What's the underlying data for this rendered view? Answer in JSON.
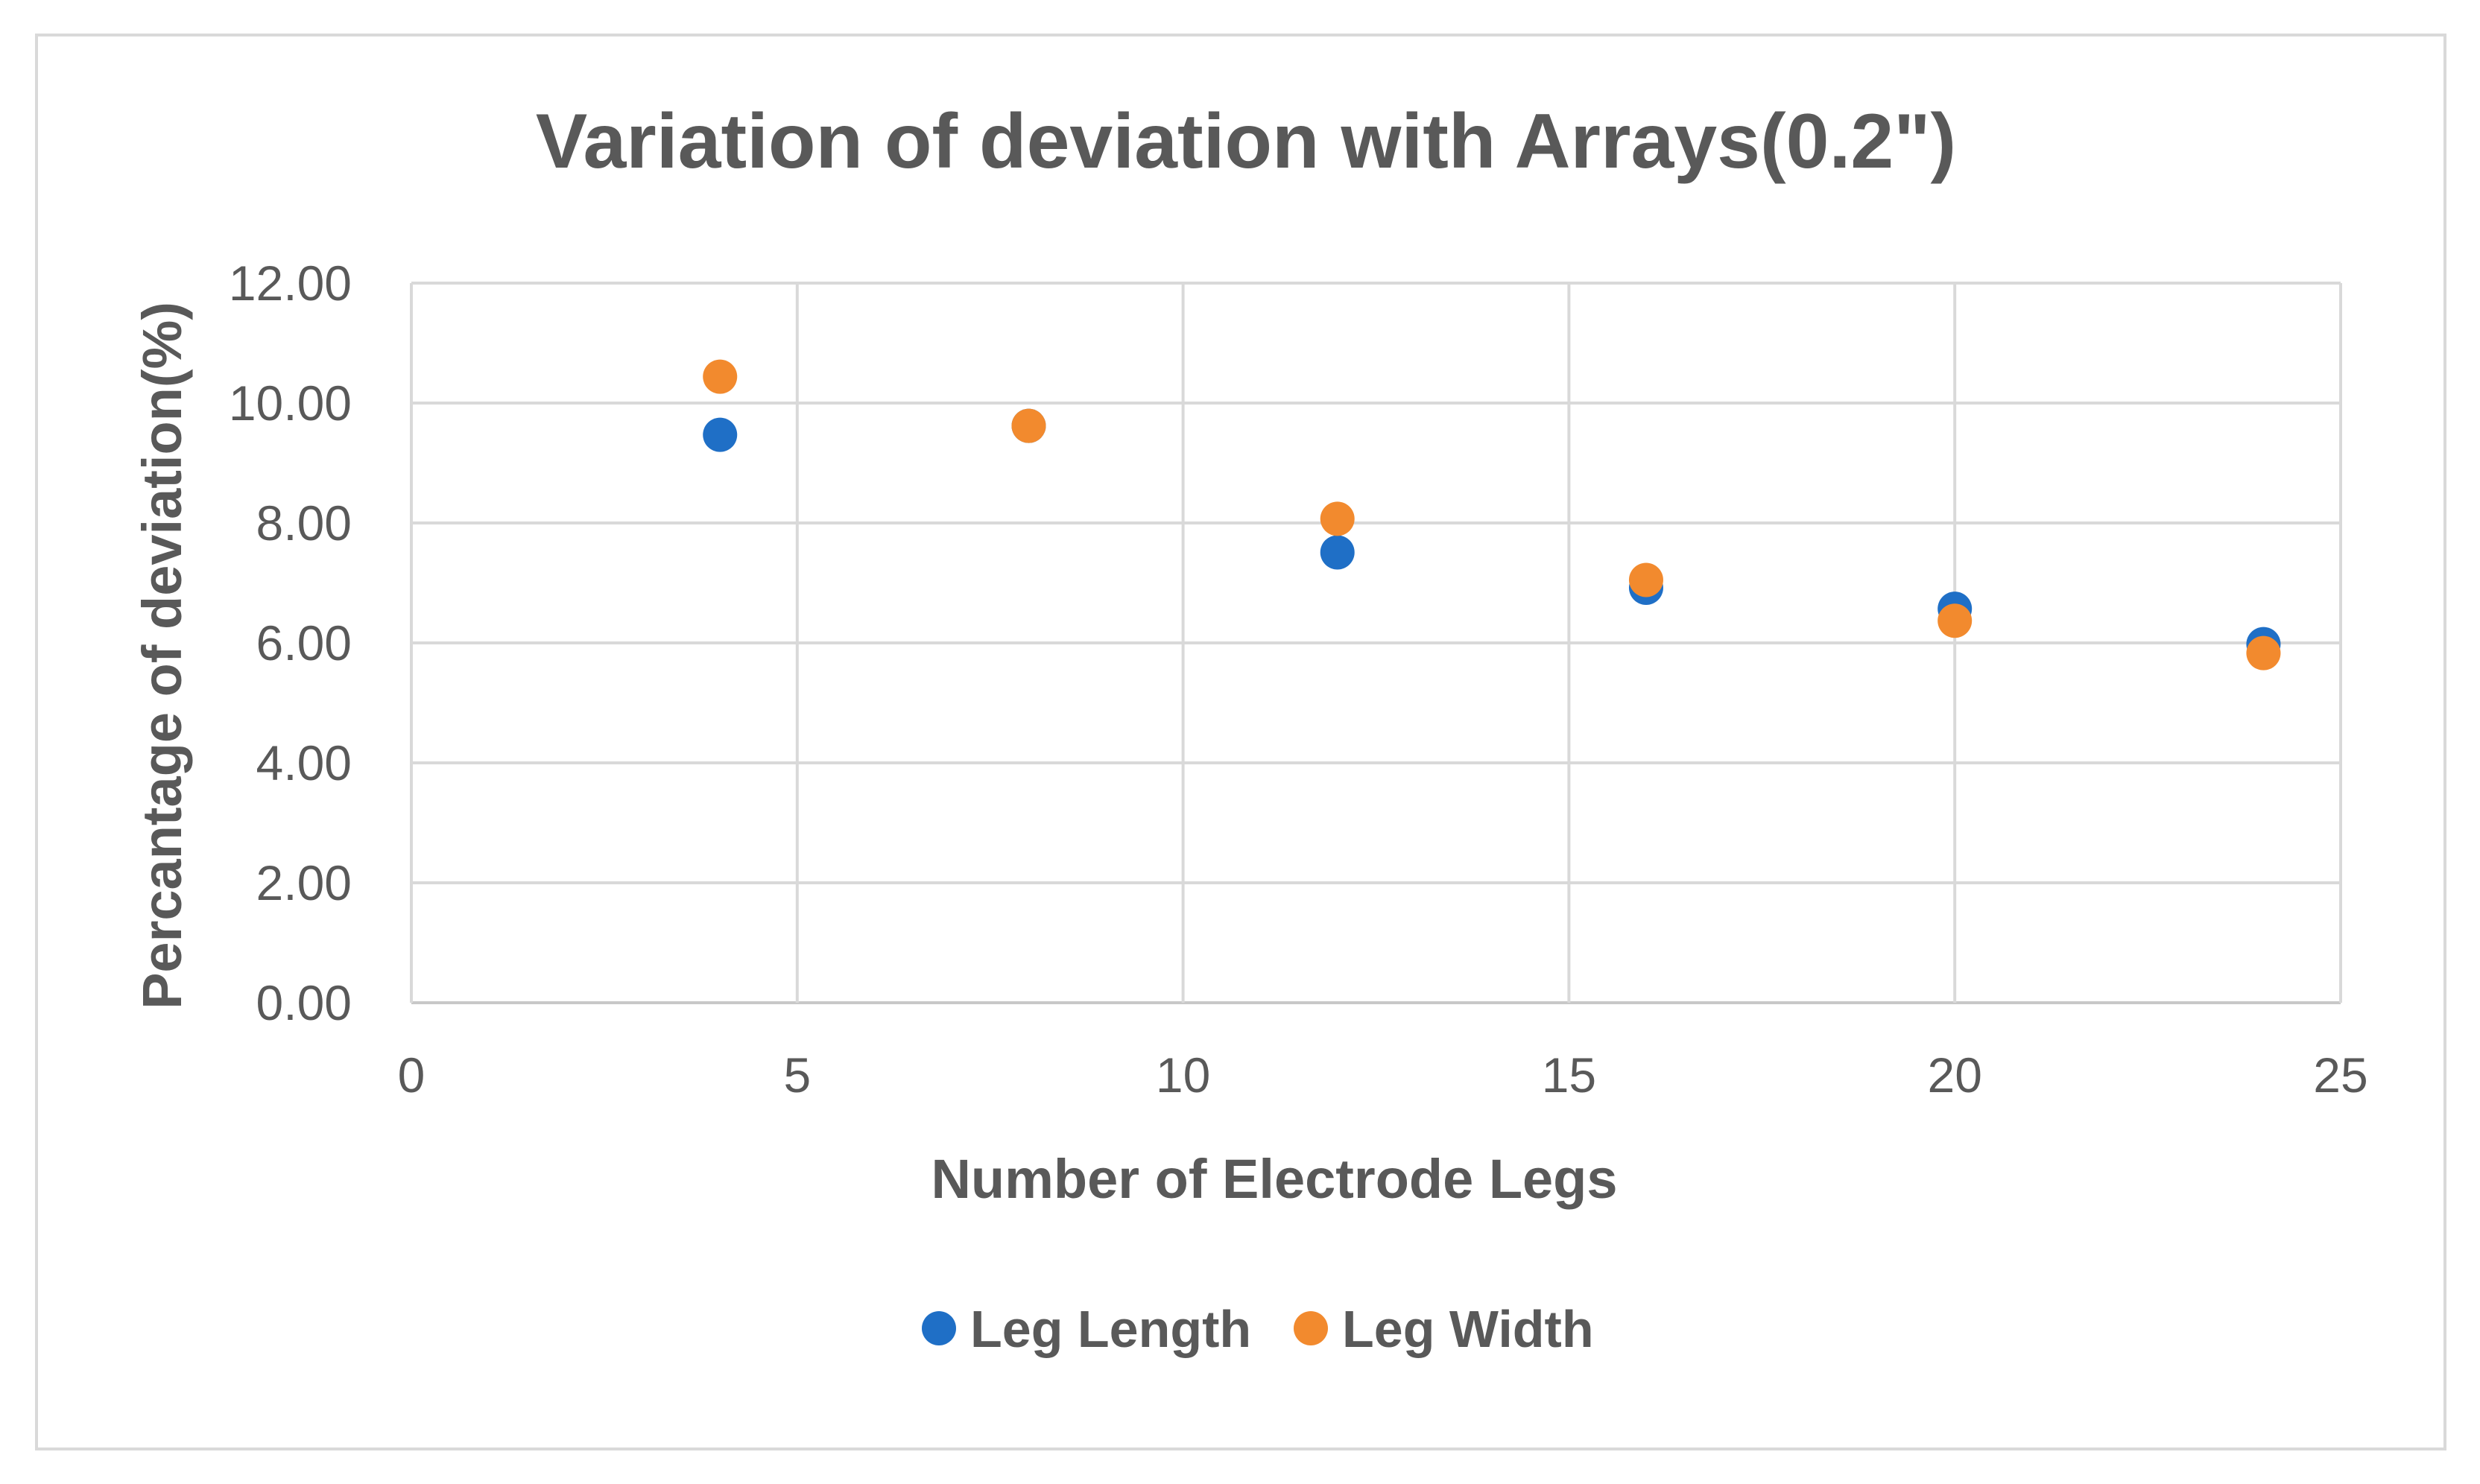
{
  "chart_data": {
    "type": "scatter",
    "title": "Variation of deviation with Arrays(0.2\")",
    "xlabel": "Number of Electrode Legs",
    "ylabel": "Percantage of deviation(%)",
    "xlim": [
      0,
      25
    ],
    "ylim": [
      0,
      12
    ],
    "x_ticks": [
      "0",
      "5",
      "10",
      "15",
      "20",
      "25"
    ],
    "y_ticks": [
      "0.00",
      "2.00",
      "4.00",
      "6.00",
      "8.00",
      "10.00",
      "12.00"
    ],
    "grid": true,
    "legend_position": "bottom",
    "series": [
      {
        "name": "Leg Length",
        "color": "#1f6fc6",
        "points": [
          {
            "x": 4,
            "y": 9.47
          },
          {
            "x": 8,
            "y": 9.62
          },
          {
            "x": 12,
            "y": 7.51
          },
          {
            "x": 16,
            "y": 6.92
          },
          {
            "x": 20,
            "y": 6.57
          },
          {
            "x": 24,
            "y": 5.98
          }
        ]
      },
      {
        "name": "Leg Width",
        "color": "#f28a2e",
        "points": [
          {
            "x": 4,
            "y": 10.44
          },
          {
            "x": 8,
            "y": 9.62
          },
          {
            "x": 12,
            "y": 8.07
          },
          {
            "x": 16,
            "y": 7.05
          },
          {
            "x": 20,
            "y": 6.37
          },
          {
            "x": 24,
            "y": 5.83
          }
        ]
      }
    ]
  }
}
